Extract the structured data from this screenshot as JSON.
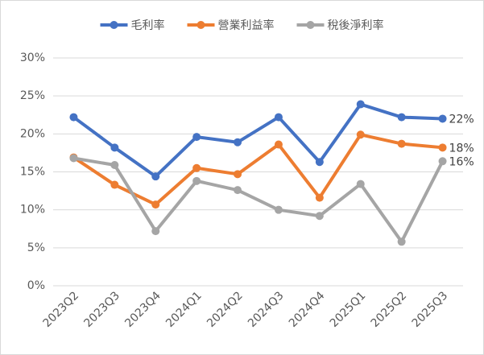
{
  "chart_data": {
    "type": "line",
    "categories": [
      "2023Q2",
      "2023Q3",
      "2023Q4",
      "2024Q1",
      "2024Q2",
      "2024Q3",
      "2024Q4",
      "2025Q1",
      "2025Q2",
      "2025Q3"
    ],
    "series": [
      {
        "name": "毛利率",
        "color": "#4472c4",
        "values": [
          22.2,
          18.2,
          14.4,
          19.6,
          18.9,
          22.2,
          16.3,
          23.9,
          22.2,
          22.0
        ],
        "value_labels": [
          null,
          null,
          null,
          null,
          null,
          null,
          null,
          null,
          null,
          "22%"
        ]
      },
      {
        "name": "營業利益率",
        "color": "#ed7d31",
        "values": [
          16.9,
          13.3,
          10.7,
          15.5,
          14.7,
          18.6,
          11.6,
          19.9,
          18.7,
          18.2
        ],
        "value_labels": [
          null,
          null,
          null,
          null,
          null,
          null,
          null,
          null,
          null,
          "18%"
        ]
      },
      {
        "name": "稅後淨利率",
        "color": "#a5a5a5",
        "values": [
          16.8,
          15.9,
          7.2,
          13.8,
          12.6,
          10.0,
          9.2,
          13.4,
          5.8,
          16.4
        ],
        "value_labels": [
          null,
          null,
          null,
          null,
          null,
          null,
          null,
          null,
          null,
          "16%"
        ]
      }
    ],
    "ylim": [
      0,
      30
    ],
    "yticks": [
      {
        "value": 0,
        "label": "0%"
      },
      {
        "value": 5,
        "label": "5%"
      },
      {
        "value": 10,
        "label": "10%"
      },
      {
        "value": 15,
        "label": "15%"
      },
      {
        "value": 20,
        "label": "20%"
      },
      {
        "value": 25,
        "label": "25%"
      },
      {
        "value": 30,
        "label": "30%"
      }
    ],
    "grid": true,
    "legend": "top"
  }
}
